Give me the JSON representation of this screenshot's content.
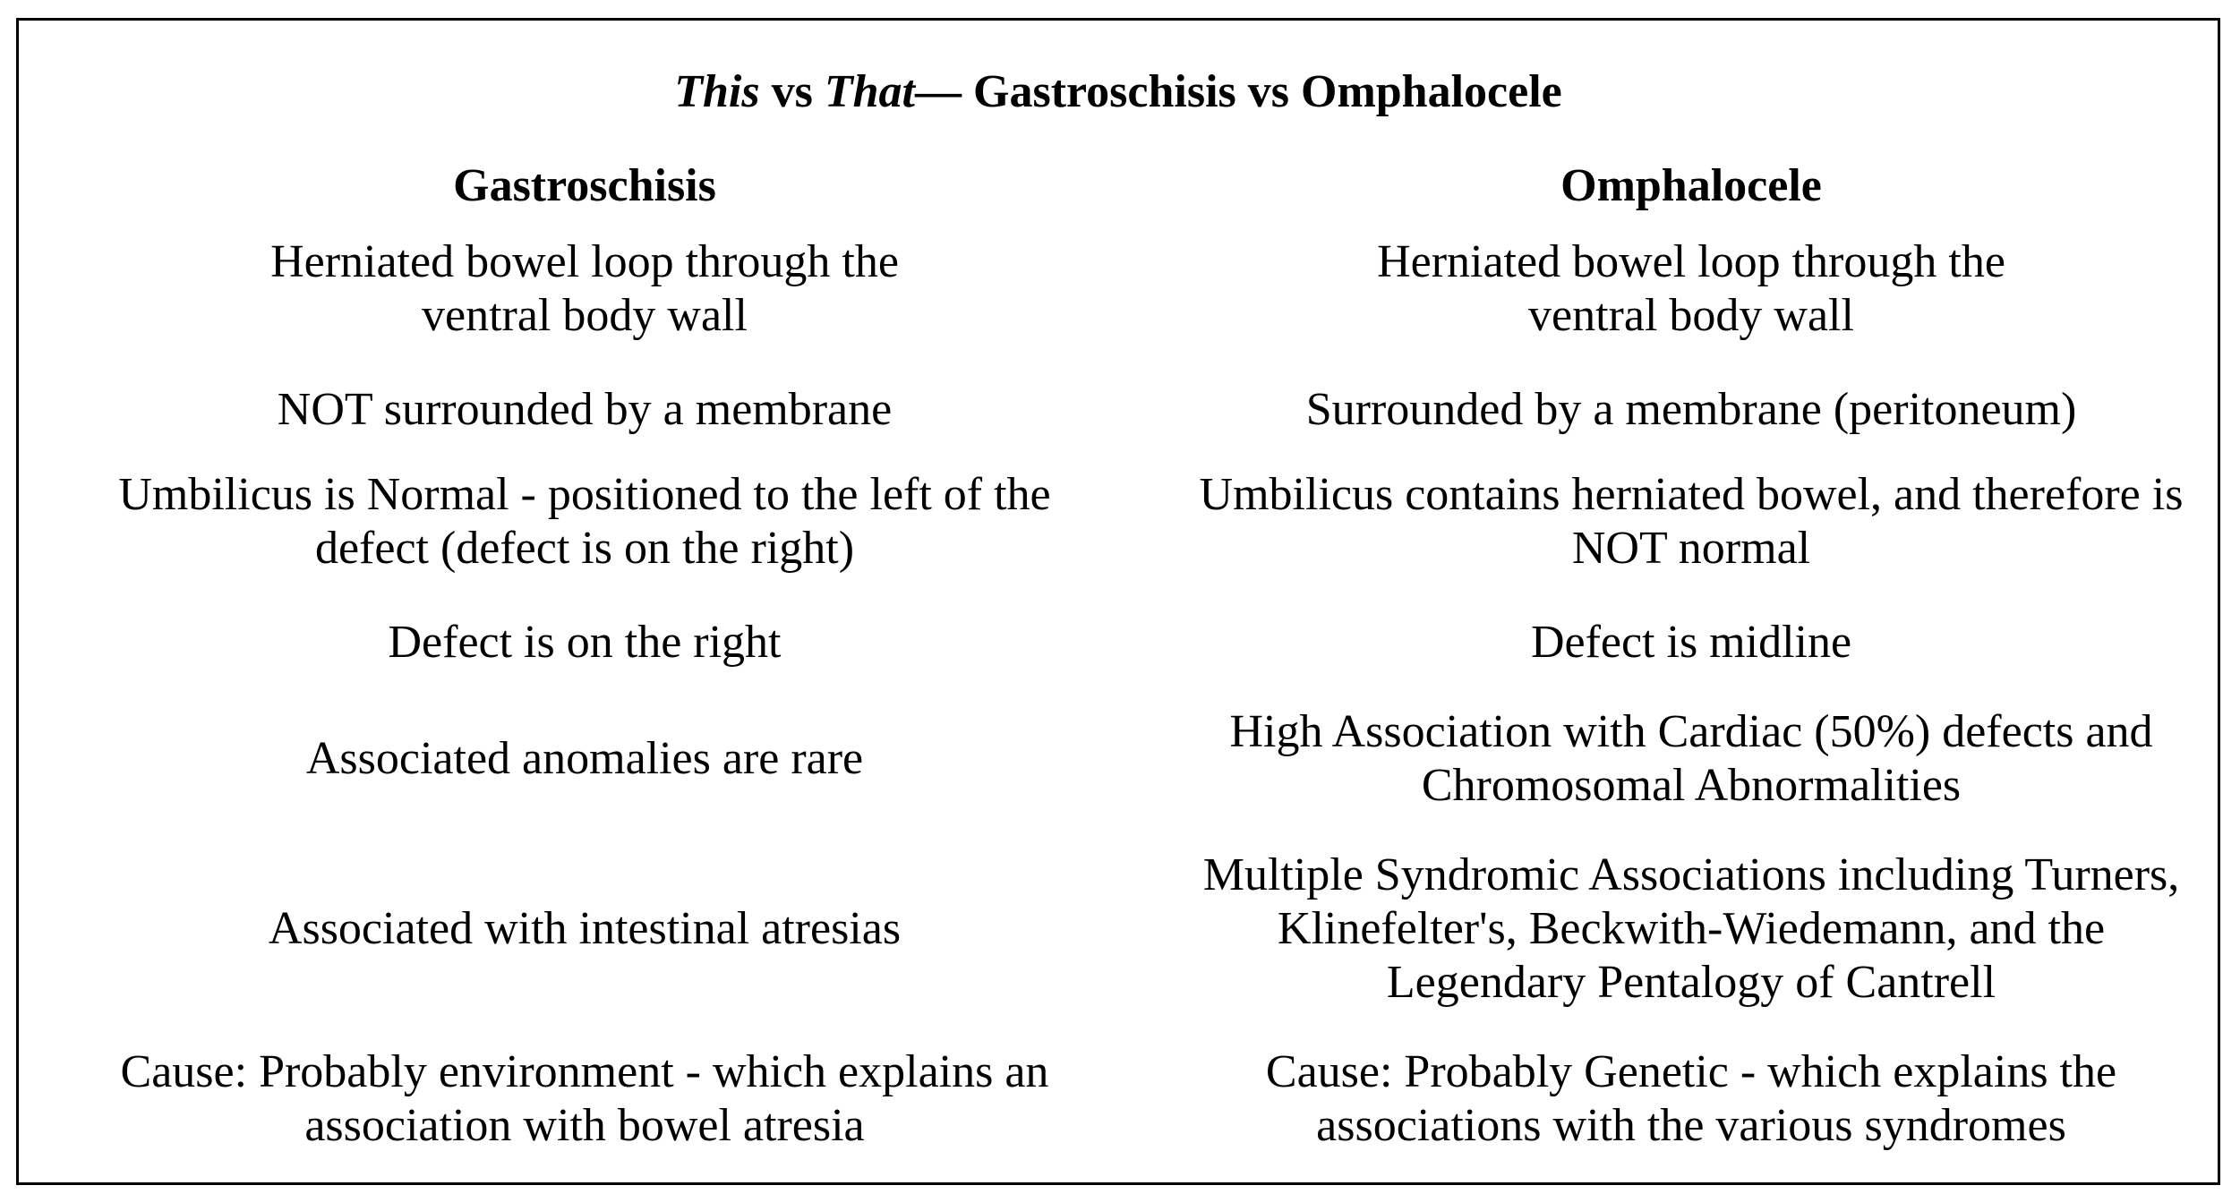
{
  "title": {
    "this": "This",
    "vs1": "vs",
    "that": "That",
    "rest": "— Gastroschisis vs Omphalocele"
  },
  "columns": {
    "left_header": "Gastroschisis",
    "right_header": "Omphalocele"
  },
  "rows": [
    {
      "left": [
        "Herniated bowel loop through the",
        "ventral body wall"
      ],
      "right": [
        "Herniated bowel loop through the",
        "ventral body wall"
      ]
    },
    {
      "left": [
        "NOT surrounded by a membrane"
      ],
      "right": [
        "Surrounded by a membrane (peritoneum)"
      ]
    },
    {
      "left": [
        "Umbilicus is Normal - positioned to the left of the",
        "defect (defect is on the right)"
      ],
      "right": [
        "Umbilicus contains herniated bowel, and therefore is",
        "NOT normal"
      ]
    },
    {
      "left": [
        "Defect is on the right"
      ],
      "right": [
        "Defect is midline"
      ]
    },
    {
      "left": [
        "Associated anomalies are rare"
      ],
      "right": [
        "High Association with Cardiac (50%) defects and",
        "Chromosomal Abnormalities"
      ]
    },
    {
      "left": [
        "Associated with intestinal atresias"
      ],
      "right": [
        "Multiple Syndromic Associations including Turners,",
        "Klinefelter's, Beckwith-Wiedemann, and the",
        "Legendary Pentalogy of Cantrell"
      ]
    },
    {
      "left": [
        "Cause: Probably environment - which explains an",
        "association with bowel atresia"
      ],
      "right": [
        "Cause: Probably Genetic - which explains the",
        "associations with the various syndromes"
      ]
    }
  ]
}
